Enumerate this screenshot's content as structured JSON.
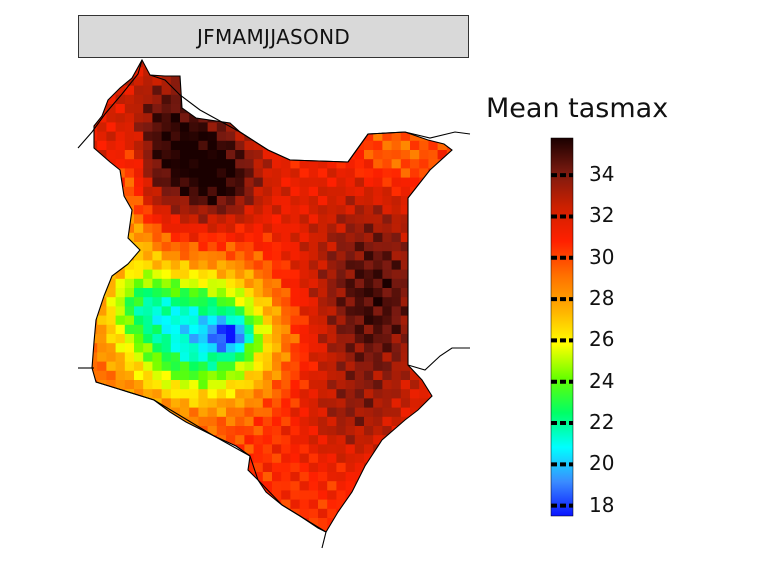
{
  "panel": {
    "title": "JFMAMJJASOND"
  },
  "legend": {
    "title": "Mean tasmax",
    "min": 17.5,
    "max": 35.8,
    "ticks": [
      "34",
      "32",
      "30",
      "28",
      "26",
      "24",
      "22",
      "20",
      "18"
    ],
    "tick_values": [
      34,
      32,
      30,
      28,
      26,
      24,
      22,
      20,
      18
    ],
    "colors": [
      "#0a14ff",
      "#3a8cff",
      "#00ffff",
      "#00ff66",
      "#66ff00",
      "#ffff00",
      "#ffb000",
      "#ff7000",
      "#ff2000",
      "#cc2000",
      "#7a1a10",
      "#1a0000"
    ]
  },
  "map": {
    "variable": "tasmax",
    "cell_grid": "0.25deg",
    "colors": {
      "outline": "#000000",
      "background": "#ffffff"
    }
  }
}
